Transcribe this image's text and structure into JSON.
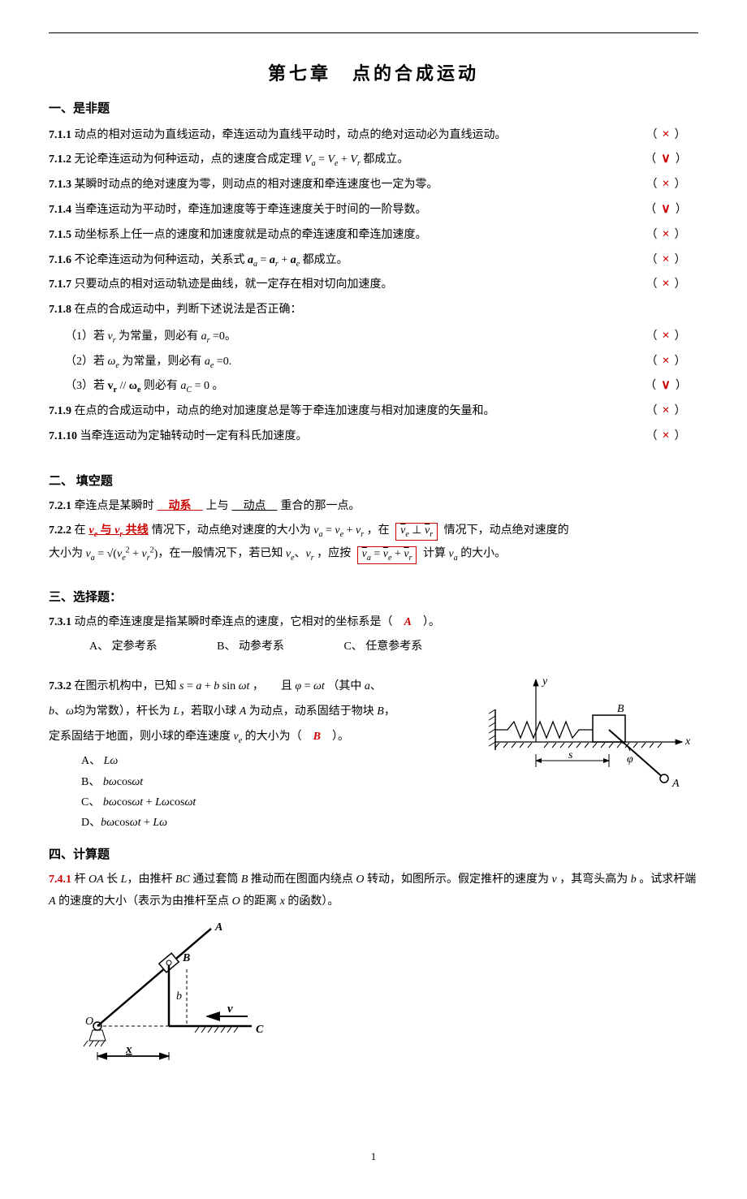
{
  "header": {
    "chapter_title": "第七章　点的合成运动"
  },
  "section1": {
    "title": "一、是非题",
    "items": [
      {
        "num": "7.1.1",
        "text": "动点的相对运动为直线运动，牵连运动为直线平动时，动点的绝对运动必为直线运动。",
        "ans": "×"
      },
      {
        "num": "7.1.2",
        "text": "无论牵连运动为何种运动，点的速度合成定理 <i>V<sub>a</sub></i> = <i>V<sub>e</sub></i> + <i>V<sub>r</sub></i> 都成立。",
        "ans": "∨"
      },
      {
        "num": "7.1.3",
        "text": "某瞬时动点的绝对速度为零，则动点的相对速度和牵连速度也一定为零。",
        "ans": "×"
      },
      {
        "num": "7.1.4",
        "text": "当牵连运动为平动时，牵连加速度等于牵连速度关于时间的一阶导数。",
        "ans": "∨"
      },
      {
        "num": "7.1.5",
        "text": "动坐标系上任一点的速度和加速度就是动点的牵连速度和牵连加速度。",
        "ans": "×"
      },
      {
        "num": "7.1.6",
        "text": "不论牵连运动为何种运动，关系式 <i><b>a</b><sub>a</sub></i> = <i><b>a</b><sub>r</sub></i> + <i><b>a</b><sub>e</sub></i> 都成立。",
        "ans": "×"
      },
      {
        "num": "7.1.7",
        "text": "只要动点的相对运动轨迹是曲线，就一定存在相对切向加速度。",
        "ans": "×"
      }
    ],
    "item8": {
      "num": "7.1.8",
      "text": "在点的合成运动中，判断下述说法是否正确：",
      "subs": [
        {
          "label": "（1）",
          "text": "若 <i>v<sub>r</sub></i> 为常量，则必有 <i>a<sub>r</sub></i> =0。",
          "ans": "×"
        },
        {
          "label": "（2）",
          "text": "若 <i>ω<sub>e</sub></i> 为常量，则必有 <i>a<sub>e</sub></i> =0.",
          "ans": "×"
        },
        {
          "label": "（3）",
          "text": "若 <b>v<sub>r</sub></b> // <b>ω<sub>e</sub></b> 则必有 <i>a<sub>C</sub></i> = 0 。",
          "ans": "∨"
        }
      ]
    },
    "items2": [
      {
        "num": "7.1.9",
        "text": "在点的合成运动中，动点的绝对加速度总是等于牵连加速度与相对加速度的矢量和。",
        "ans": "×"
      },
      {
        "num": "7.1.10",
        "text": "当牵连运动为定轴转动时一定有科氏加速度。",
        "ans": "×"
      }
    ]
  },
  "section2": {
    "title": "二、 填空题",
    "q1": {
      "num": "7.2.1",
      "pre": "牵连点是某瞬时",
      "blank1": "　动系　",
      "mid": "上与",
      "blank2": "　动点　",
      "post": "重合的那一点。"
    },
    "q2": {
      "num": "7.2.2",
      "part1_pre": "在",
      "blank1": "<i>v<sub>e</sub></i> 与 <i>v<sub>r</sub></i> 共线",
      "part1_post": "情况下，动点绝对速度的大小为 <i>v<sub>a</sub></i> = <i>v<sub>e</sub></i> + <i>v<sub>r</sub></i> ，在",
      "box1": "<span class='vec'><i>v</i></span><sub><i>e</i></sub> ⊥ <span class='vec'><i>v</i></span><sub><i>r</i></sub>",
      "part2": "情况下，动点绝对速度的",
      "line2_pre": "大小为 ",
      "formula2": "<i>v<sub>a</sub></i> = √(<i>v<sub>e</sub></i><sup>2</sup> + <i>v<sub>r</sub></i><sup>2</sup>)",
      "part3": "，在一般情况下，若已知 <i>v<sub>e</sub></i>、<i>v<sub>r</sub></i> ，应按",
      "box2": "<span class='vec'><i>v</i></span><sub><i>a</i></sub> = <span class='vec'><i>v</i></span><sub><i>e</i></sub> + <span class='vec'><i>v</i></span><sub><i>r</i></sub>",
      "part4": " 计算 <i>v<sub>a</sub></i> 的大小。"
    }
  },
  "section3": {
    "title": "三、选择题：",
    "q1": {
      "num": "7.3.1",
      "text": "动点的牵连速度是指某瞬时牵连点的速度，它相对的坐标系是（",
      "ans": "A",
      "post": "）。",
      "opts": [
        "A、 定参考系",
        "B、 动参考系",
        "C、 任意参考系"
      ]
    },
    "q2": {
      "num": "7.3.2",
      "line1": "在图示机构中，已知 <i>s</i> = <i>a</i> + <i>b</i> sin <i>ωt</i> ，　　且 <i>φ</i> = <i>ωt</i> （其中 <i>a</i>、",
      "line2": "<i>b</i>、<i>ω</i>均为常数），杆长为 <i>L</i>，若取小球 <i>A</i> 为动点，动系固结于物块 <i>B</i>，",
      "line3": "定系固结于地面，则小球的牵连速度 <i>v<sub>e</sub></i> 的大小为（　<span class='red'>B</span>　）。",
      "ans": "B",
      "opts": [
        "A、 <i>Lω</i>",
        "B、 <i>bω</i>cos<i>ωt</i>",
        "C、 <i>bω</i>cos<i>ωt</i> + <i>Lω</i>cos<i>ωt</i>",
        "D、<i>bω</i>cos<i>ωt</i> + <i>Lω</i>"
      ]
    }
  },
  "section4": {
    "title": "四、计算题",
    "q1": {
      "num": "7.4.1",
      "text": "杆 <i>OA</i> 长 <i>L</i>，由推杆 <i>BC</i> 通过套筒 <i>B</i> 推动而在图面内绕点 <i>O</i> 转动，如图所示。假定推杆的速度为 <i>v</i> ，其弯头高为 <i>b</i> 。试求杆端 <i>A</i> 的速度的大小（表示为由推杆至点 <i>O</i> 的距离 <i>x</i> 的函数）。"
    }
  },
  "pagenum": "1"
}
